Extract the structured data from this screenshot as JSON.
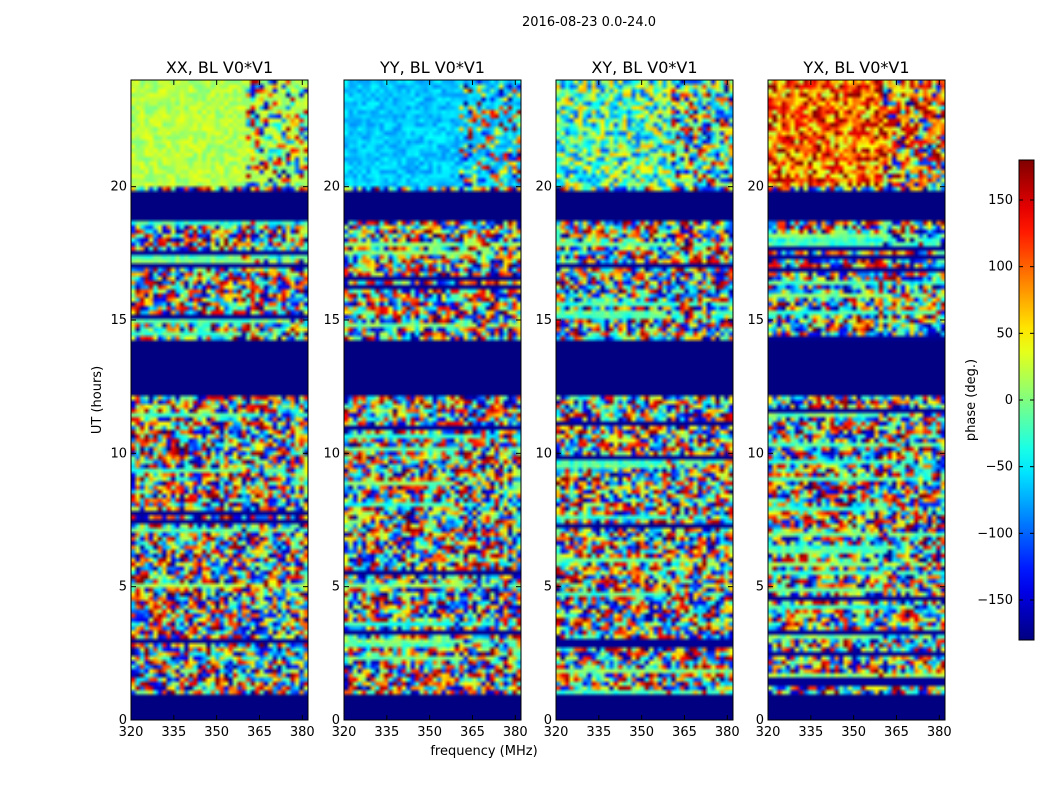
{
  "figure": {
    "suptitle": "2016-08-23 0.0-24.0"
  },
  "chart_data": {
    "type": "heatmap",
    "title": "2016-08-23 0.0-24.0",
    "xlabel": "frequency (MHz)",
    "ylabel": "UT (hours)",
    "xlim": [
      320,
      382
    ],
    "ylim": [
      0,
      24
    ],
    "xticks": [
      320,
      335,
      350,
      365,
      380
    ],
    "yticks": [
      0,
      5,
      10,
      15,
      20
    ],
    "panels": [
      {
        "title": "XX, BL V0*V1",
        "pol": "XX"
      },
      {
        "title": "YY, BL V0*V1",
        "pol": "YY"
      },
      {
        "title": "XY, BL V0*V1",
        "pol": "XY"
      },
      {
        "title": "YX, BL V0*V1",
        "pol": "YX"
      }
    ],
    "flagged_ut_ranges": [
      [
        0.0,
        1.0
      ],
      [
        12.1,
        14.2
      ],
      [
        18.7,
        19.9
      ]
    ],
    "colorbar": {
      "label": "phase (deg.)",
      "range": [
        -180,
        180
      ],
      "ticks": [
        150,
        100,
        50,
        0,
        -50,
        -100,
        -150
      ],
      "tick_labels": [
        "150",
        "100",
        "50",
        "0",
        "−50",
        "−100",
        "−150"
      ],
      "colormap": "jet"
    }
  }
}
